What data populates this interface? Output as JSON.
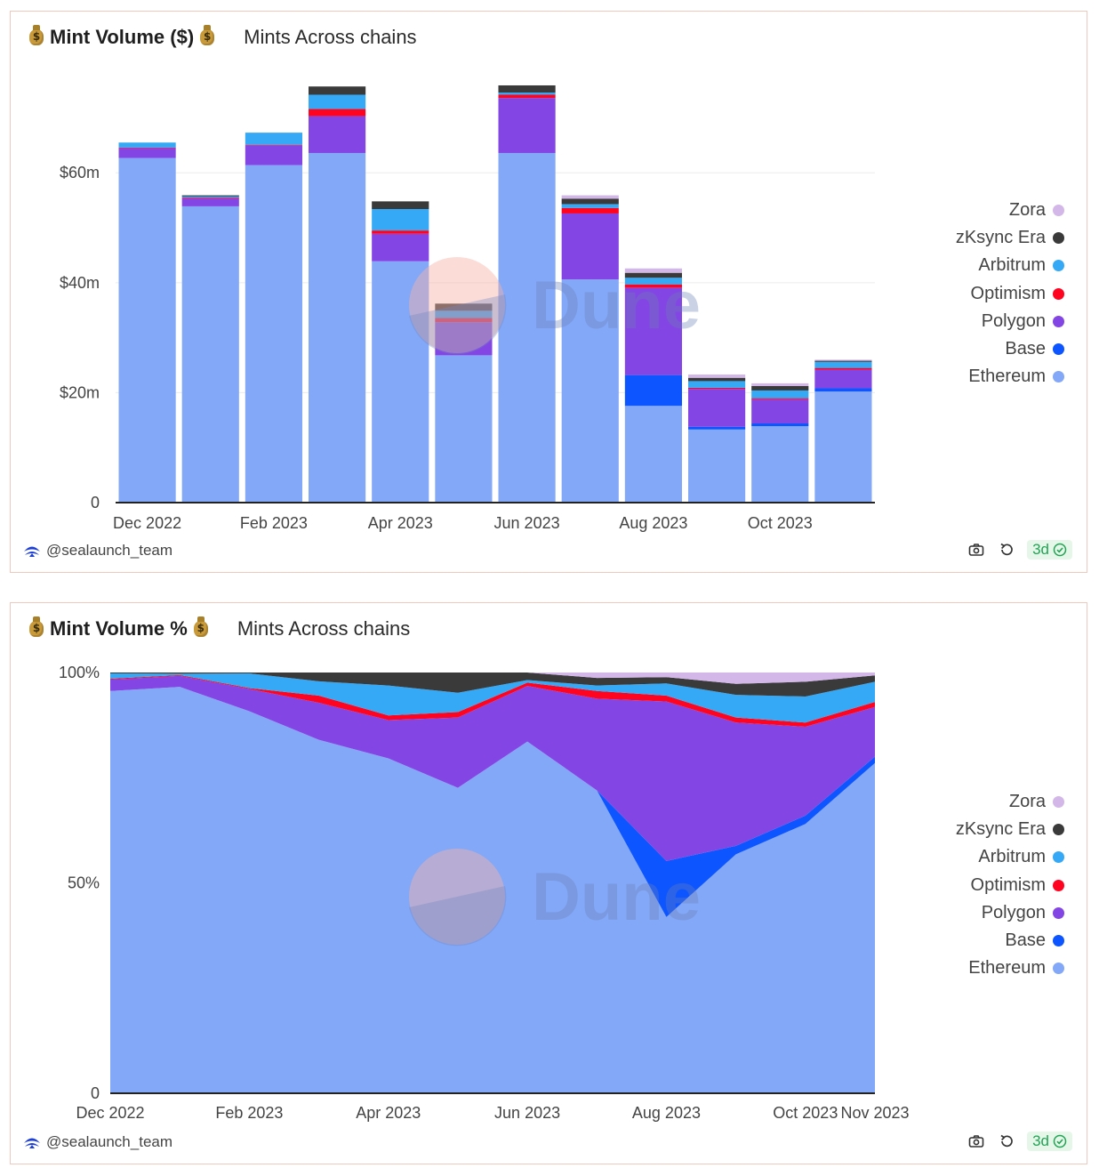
{
  "cards": [
    {
      "title": "Mint Volume ($)",
      "subtitle": "Mints Across chains",
      "author": "@sealaunch_team",
      "freshness": "3d"
    },
    {
      "title": "Mint Volume %",
      "subtitle": "Mints Across chains",
      "author": "@sealaunch_team",
      "freshness": "3d"
    }
  ],
  "icons": {
    "header": "money-bag-icon",
    "author": "sealaunch-logo-icon",
    "screenshot": "camera-icon",
    "refresh": "refresh-icon",
    "fresh": "check-circle-icon"
  },
  "watermark": "Dune",
  "colors": {
    "Ethereum": "#83a8f7",
    "Base": "#0c55ff",
    "Polygon": "#8345e3",
    "Optimism": "#ff0420",
    "Arbitrum": "#35a9f5",
    "zKsync Era": "#3a3a3a",
    "Zora": "#d3b7e8",
    "card_border": "#f2c8bd",
    "badge": "#21a454"
  },
  "legend": [
    "Zora",
    "zKsync Era",
    "Arbitrum",
    "Optimism",
    "Polygon",
    "Base",
    "Ethereum"
  ],
  "chart_data": [
    {
      "type": "bar",
      "stacked": true,
      "title": "Mint Volume ($)",
      "categories": [
        "2022-12",
        "2023-01",
        "2023-02",
        "2023-03",
        "2023-04",
        "2023-05",
        "2023-06",
        "2023-07",
        "2023-08",
        "2023-09",
        "2023-10",
        "2023-11"
      ],
      "x_tick_labels": [
        "Dec 2022",
        "Feb 2023",
        "Apr 2023",
        "Jun 2023",
        "Aug 2023",
        "Oct 2023"
      ],
      "y_tick_labels": [
        "0",
        "$20m",
        "$40m",
        "$60m"
      ],
      "y_ticks": [
        0,
        20,
        40,
        60
      ],
      "ylim": [
        0,
        78
      ],
      "y_unit": "$m",
      "grid": true,
      "legend_position": "right",
      "series": [
        {
          "name": "Ethereum",
          "values": [
            62.7,
            53.9,
            61.4,
            63.6,
            43.9,
            26.8,
            63.6,
            40.6,
            17.6,
            13.3,
            13.9,
            20.2
          ]
        },
        {
          "name": "Base",
          "values": [
            0,
            0,
            0,
            0,
            0,
            0,
            0,
            0,
            5.6,
            0.5,
            0.5,
            0.6
          ]
        },
        {
          "name": "Polygon",
          "values": [
            1.8,
            1.5,
            3.6,
            6.7,
            5.0,
            6.0,
            10.0,
            12.0,
            15.9,
            6.9,
            4.4,
            3.4
          ]
        },
        {
          "name": "Optimism",
          "values": [
            0.1,
            0.1,
            0.1,
            1.3,
            0.6,
            0.8,
            0.6,
            1.0,
            0.6,
            0.2,
            0.2,
            0.3
          ]
        },
        {
          "name": "Arbitrum",
          "values": [
            0.9,
            0.2,
            2.2,
            2.6,
            3.9,
            1.3,
            0.4,
            0.7,
            1.2,
            1.2,
            1.4,
            1.1
          ]
        },
        {
          "name": "zKsync Era",
          "values": [
            0,
            0.2,
            0,
            1.5,
            1.4,
            1.3,
            1.3,
            1.0,
            0.9,
            0.6,
            0.8,
            0.2
          ]
        },
        {
          "name": "Zora",
          "values": [
            0,
            0,
            0,
            0,
            0,
            0,
            0,
            0.6,
            0.8,
            0.6,
            0.5,
            0.2
          ]
        }
      ]
    },
    {
      "type": "area",
      "stacked": true,
      "title": "Mint Volume %",
      "x": [
        "2022-12",
        "2023-01",
        "2023-02",
        "2023-03",
        "2023-04",
        "2023-05",
        "2023-06",
        "2023-07",
        "2023-08",
        "2023-09",
        "2023-10",
        "2023-11"
      ],
      "x_tick_labels": [
        "Dec 2022",
        "Feb 2023",
        "Apr 2023",
        "Jun 2023",
        "Aug 2023",
        "Oct 2023",
        "Nov 2023"
      ],
      "y_tick_labels": [
        "0",
        "50%",
        "100%"
      ],
      "y_ticks": [
        0,
        50,
        100
      ],
      "ylim": [
        0,
        100
      ],
      "grid": false,
      "legend_position": "right",
      "series": [
        {
          "name": "Ethereum",
          "values": [
            95.6,
            96.6,
            90.8,
            84.0,
            79.6,
            72.6,
            83.6,
            72.0,
            41.9,
            56.8,
            64.0,
            78.5
          ]
        },
        {
          "name": "Base",
          "values": [
            0,
            0,
            0,
            0,
            0,
            0,
            0,
            0,
            13.3,
            2.0,
            2.0,
            1.5
          ]
        },
        {
          "name": "Polygon",
          "values": [
            2.7,
            2.6,
            5.3,
            8.8,
            9.1,
            16.7,
            13.2,
            21.8,
            37.9,
            29.3,
            21.1,
            11.8
          ]
        },
        {
          "name": "Optimism",
          "values": [
            0.2,
            0.2,
            0.2,
            1.7,
            1.1,
            1.3,
            0.8,
            1.8,
            1.4,
            1.2,
            1.0,
            1.2
          ]
        },
        {
          "name": "Arbitrum",
          "values": [
            1.3,
            0.3,
            3.5,
            3.4,
            7.1,
            4.6,
            0.6,
            1.3,
            2.9,
            5.4,
            6.2,
            4.8
          ]
        },
        {
          "name": "zKsync Era",
          "values": [
            0.2,
            0.3,
            0.2,
            2.1,
            3.1,
            4.8,
            1.8,
            1.8,
            1.5,
            2.6,
            3.5,
            1.5
          ]
        },
        {
          "name": "Zora",
          "values": [
            0,
            0,
            0,
            0,
            0,
            0,
            0,
            1.3,
            1.1,
            2.7,
            2.2,
            0.7
          ]
        }
      ]
    }
  ]
}
